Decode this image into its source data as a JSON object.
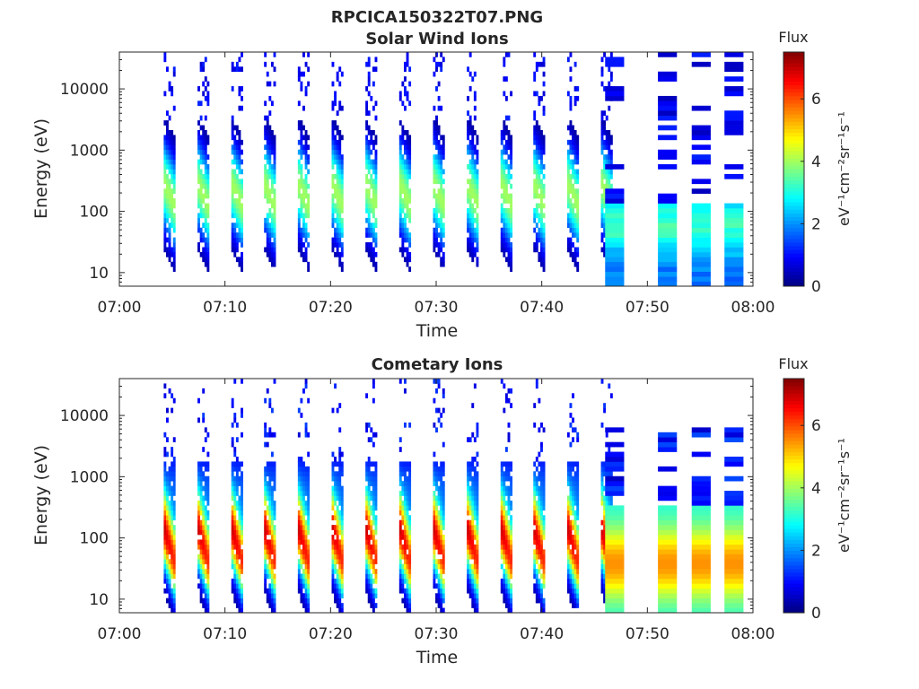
{
  "figure": {
    "title": "RPCICA150322T07.PNG"
  },
  "chart_data": [
    {
      "type": "heatmap",
      "title": "Solar Wind Ions",
      "xlabel": "Time",
      "ylabel": "Energy (eV)",
      "x_ticks": [
        "07:00",
        "07:10",
        "07:20",
        "07:30",
        "07:40",
        "07:50",
        "08:00"
      ],
      "xlim_minutes": [
        0,
        60
      ],
      "y_scale": "log",
      "y_ticks": [
        "10",
        "100",
        "1000",
        "10000"
      ],
      "ylim": [
        6,
        40000
      ],
      "colorbar": {
        "label_top": "Flux",
        "label": "eV⁻¹cm⁻²sr⁻¹s⁻¹",
        "ticks": [
          "0",
          "2",
          "4",
          "6"
        ],
        "range": [
          0,
          7.5
        ],
        "colormap": "jet"
      },
      "sweep_start_minutes": [
        4.2,
        7.4,
        10.6,
        13.7,
        16.9,
        20.1,
        23.3,
        26.5,
        29.7,
        32.9,
        36.1,
        39.2,
        42.4,
        45.6
      ],
      "block_start_minutes": [
        47.8,
        52.6,
        55.8,
        58.9
      ],
      "series_peak_flux": 4.0
    },
    {
      "type": "heatmap",
      "title": "Cometary Ions",
      "xlabel": "Time",
      "ylabel": "Energy (eV)",
      "x_ticks": [
        "07:00",
        "07:10",
        "07:20",
        "07:30",
        "07:40",
        "07:50",
        "08:00"
      ],
      "xlim_minutes": [
        0,
        60
      ],
      "y_scale": "log",
      "y_ticks": [
        "10",
        "100",
        "1000",
        "10000"
      ],
      "ylim": [
        6,
        40000
      ],
      "colorbar": {
        "label_top": "Flux",
        "label": "eV⁻¹cm⁻²sr⁻¹s⁻¹",
        "ticks": [
          "0",
          "2",
          "4",
          "6"
        ],
        "range": [
          0,
          7.5
        ],
        "colormap": "jet"
      },
      "sweep_start_minutes": [
        4.2,
        7.4,
        10.6,
        13.7,
        16.9,
        20.1,
        23.3,
        26.5,
        29.7,
        32.9,
        36.1,
        39.2,
        42.4,
        45.6
      ],
      "block_start_minutes": [
        47.8,
        52.6,
        55.8,
        58.9
      ],
      "series_peak_flux": 6.0
    }
  ]
}
